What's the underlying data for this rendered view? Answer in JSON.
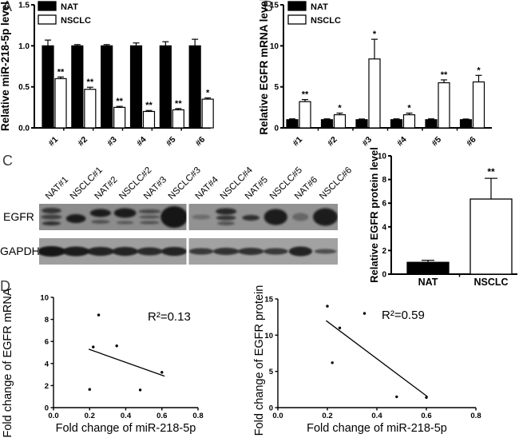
{
  "figure": {
    "panel_labels": {
      "a": "A",
      "b": "B",
      "c": "C",
      "d": "D"
    }
  },
  "chart_data": [
    {
      "id": "chartA",
      "type": "bar",
      "categories": [
        "#1",
        "#2",
        "#3",
        "#4",
        "#5",
        "#6"
      ],
      "series": [
        {
          "name": "NAT",
          "fill": "#000000",
          "values": [
            1.0,
            1.0,
            1.0,
            1.0,
            1.0,
            1.0
          ],
          "errors": [
            0.07,
            0.015,
            0.015,
            0.035,
            0.05,
            0.08
          ],
          "sig": [
            "",
            "",
            "",
            "",
            "",
            ""
          ]
        },
        {
          "name": "NSCLC",
          "fill": "#ffffff",
          "values": [
            0.6,
            0.47,
            0.25,
            0.2,
            0.22,
            0.35
          ],
          "errors": [
            0.02,
            0.025,
            0.012,
            0.012,
            0.015,
            0.015
          ],
          "sig": [
            "**",
            "**",
            "**",
            "**",
            "**",
            "*"
          ]
        }
      ],
      "ylabel": "Relative miR-218-5p level",
      "ylim": [
        0,
        1.5
      ],
      "yticks": [
        0,
        0.5,
        1,
        1.5
      ],
      "ytick_labels": [
        "0.0",
        "0.5",
        "1.0",
        "1.5"
      ],
      "legend": [
        "NAT",
        "NSCLC"
      ],
      "legend_position": "top-left",
      "grid": false
    },
    {
      "id": "chartB",
      "type": "bar",
      "categories": [
        "#1",
        "#2",
        "#3",
        "#4",
        "#5",
        "#6"
      ],
      "series": [
        {
          "name": "NAT",
          "fill": "#000000",
          "values": [
            1.0,
            1.0,
            1.0,
            1.0,
            1.0,
            1.0
          ],
          "errors": [
            0.1,
            0.1,
            0.08,
            0.1,
            0.1,
            0.08
          ],
          "sig": [
            "",
            "",
            "",
            "",
            "",
            ""
          ]
        },
        {
          "name": "NSCLC",
          "fill": "#ffffff",
          "values": [
            3.2,
            1.6,
            8.4,
            1.6,
            5.5,
            5.6
          ],
          "errors": [
            0.25,
            0.2,
            2.4,
            0.2,
            0.35,
            0.8
          ],
          "sig": [
            "**",
            "*",
            "*",
            "*",
            "**",
            "*"
          ]
        }
      ],
      "ylabel": "Relative EGFR mRNA level",
      "ylim": [
        0,
        15
      ],
      "yticks": [
        0,
        5,
        10,
        15
      ],
      "ytick_labels": [
        "0",
        "5",
        "10",
        "15"
      ],
      "legend": [
        "NAT",
        "NSCLC"
      ],
      "legend_position": "top-left",
      "grid": false
    },
    {
      "id": "chartC",
      "type": "bar",
      "bars": [
        {
          "label": "NAT",
          "value": 1.0,
          "error": 0.17,
          "fill": "#000000",
          "sig": ""
        },
        {
          "label": "NSCLC",
          "value": 6.35,
          "error": 1.75,
          "fill": "#ffffff",
          "sig": "**"
        }
      ],
      "ylabel": "Relative EGFR protein level",
      "ylim": [
        0,
        10
      ],
      "yticks": [
        0,
        2,
        4,
        6,
        8,
        10
      ],
      "ytick_labels": [
        "0",
        "2",
        "4",
        "6",
        "8",
        "10"
      ],
      "grid": false
    },
    {
      "id": "chartD1",
      "type": "scatter",
      "points": [
        [
          0.6,
          3.2
        ],
        [
          0.48,
          1.6
        ],
        [
          0.25,
          8.4
        ],
        [
          0.2,
          1.65
        ],
        [
          0.22,
          5.5
        ],
        [
          0.35,
          5.6
        ]
      ],
      "fit_line": {
        "x1": 0.195,
        "y1": 5.3,
        "x2": 0.615,
        "y2": 2.85
      },
      "annotation": "R²=0.13",
      "xlabel": "Fold change of miR-218-5p",
      "ylabel": "Fold change of EGFR mRNA",
      "xlim": [
        0,
        0.8
      ],
      "ylim": [
        0,
        10
      ],
      "xticks": [
        0,
        0.2,
        0.4,
        0.6,
        0.8
      ],
      "xtick_labels": [
        "0.0",
        "0.2",
        "0.4",
        "0.6",
        "0.8"
      ],
      "yticks": [
        0,
        2,
        4,
        6,
        8,
        10
      ],
      "ytick_labels": [
        "0",
        "2",
        "4",
        "6",
        "8",
        "10"
      ],
      "grid": false
    },
    {
      "id": "chartD2",
      "type": "scatter",
      "points": [
        [
          0.2,
          14.0
        ],
        [
          0.25,
          11.0
        ],
        [
          0.35,
          13.0
        ],
        [
          0.22,
          6.2
        ],
        [
          0.48,
          1.5
        ],
        [
          0.6,
          1.4
        ]
      ],
      "fit_line": {
        "x1": 0.195,
        "y1": 12.0,
        "x2": 0.605,
        "y2": 1.5
      },
      "annotation": "R²=0.59",
      "xlabel": "Fold change of miR-218-5p",
      "ylabel": "Fold change of EGFR protein",
      "xlim": [
        0,
        0.8
      ],
      "ylim": [
        0,
        15
      ],
      "xticks": [
        0,
        0.2,
        0.4,
        0.6,
        0.8
      ],
      "xtick_labels": [
        "0.0",
        "0.2",
        "0.4",
        "0.6",
        "0.8"
      ],
      "yticks": [
        0,
        5,
        10,
        15
      ],
      "ytick_labels": [
        "0",
        "5",
        "10",
        "15"
      ],
      "grid": false
    }
  ],
  "blot": {
    "row_labels": [
      "EGFR",
      "GAPDH"
    ],
    "lane_labels": [
      "NAT#1",
      "NSCLC#1",
      "NAT#2",
      "NSCLC#2",
      "NAT#3",
      "NSCLC#3",
      "NAT#4",
      "NSCLC#4",
      "NAT#5",
      "NSCLC#5",
      "NAT#6",
      "NSCLC#6"
    ],
    "strip_color_egfr": "#8c8c8c",
    "strip_color_gapdh": "#9e9e9e",
    "band_color": "#141414",
    "egfr_bands": [
      [
        [
          0.75,
          7,
          -8,
          0.8
        ],
        [
          0.65,
          6,
          0,
          0.85
        ],
        [
          0.8,
          5,
          8,
          0.75
        ]
      ],
      [
        [
          0.95,
          11,
          2,
          0.8
        ]
      ],
      [
        [
          0.95,
          10,
          -5,
          0.85
        ],
        [
          0.5,
          5,
          6,
          0.75
        ]
      ],
      [
        [
          0.95,
          12,
          -5,
          0.9
        ],
        [
          0.45,
          4,
          7,
          0.7
        ]
      ],
      [
        [
          0.6,
          5,
          -7,
          0.9
        ],
        [
          0.5,
          4,
          0,
          0.85
        ],
        [
          0.5,
          4,
          7,
          0.8
        ]
      ],
      [
        [
          1.0,
          27,
          0,
          1.1
        ]
      ],
      [
        [
          0.3,
          6,
          0,
          0.75
        ]
      ],
      [
        [
          0.85,
          8,
          -7,
          0.85
        ],
        [
          0.75,
          6,
          1,
          0.8
        ],
        [
          0.5,
          5,
          8,
          0.7
        ]
      ],
      [
        [
          0.8,
          7,
          1,
          0.7
        ]
      ],
      [
        [
          0.95,
          20,
          0,
          0.95
        ]
      ],
      [
        [
          0.35,
          10,
          0,
          0.65
        ]
      ],
      [
        [
          0.95,
          22,
          0,
          1.0
        ]
      ]
    ],
    "gapdh_bands": [
      [
        [
          1.0,
          13,
          0,
          1.15
        ]
      ],
      [
        [
          0.95,
          12,
          0,
          1.1
        ]
      ],
      [
        [
          0.9,
          11,
          0,
          1.1
        ]
      ],
      [
        [
          0.9,
          11,
          0,
          1.05
        ]
      ],
      [
        [
          0.85,
          10,
          0,
          1.05
        ]
      ],
      [
        [
          0.9,
          11,
          0,
          1.05
        ]
      ],
      [
        [
          0.75,
          8,
          0,
          1.0
        ]
      ],
      [
        [
          0.8,
          9,
          0,
          1.05
        ]
      ],
      [
        [
          0.8,
          9,
          0,
          1.05
        ]
      ],
      [
        [
          0.75,
          8,
          0,
          1.0
        ]
      ],
      [
        [
          0.9,
          12,
          0,
          0.95
        ]
      ],
      [
        [
          0.6,
          6,
          0,
          0.9
        ]
      ]
    ]
  }
}
